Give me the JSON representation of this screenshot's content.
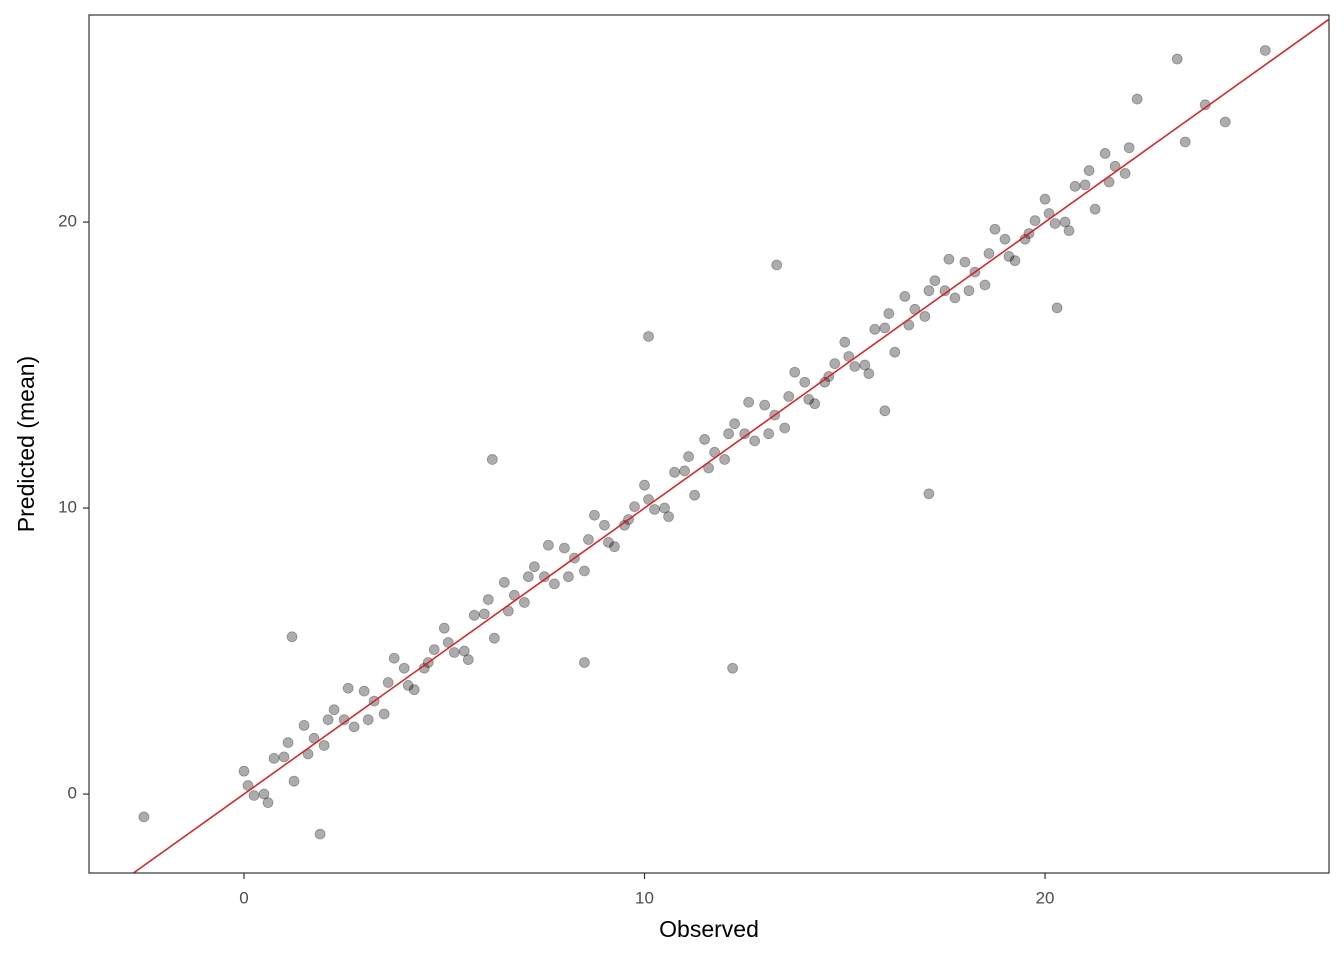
{
  "chart_data": {
    "type": "scatter",
    "x_label": "Observed",
    "y_label": "Predicted (mean)",
    "xlim": [
      -3.87,
      27.09
    ],
    "ylim": [
      -2.76,
      27.24
    ],
    "xticks": [
      0,
      10,
      20
    ],
    "yticks": [
      0,
      10,
      20
    ],
    "grid": false,
    "alpha": 0.13,
    "reference_line": {
      "slope": 1,
      "intercept": 0,
      "color": "#e41a1c"
    },
    "series": [
      {
        "color": "#000000",
        "x": [
          0,
          0.5,
          1,
          1.5,
          2,
          2.5,
          3,
          3.5,
          4,
          4.5,
          5,
          5.5,
          6,
          6.5,
          7,
          7.5,
          8,
          8.5,
          9,
          9.5,
          10,
          10.5,
          11,
          11.5,
          12,
          12.5,
          13,
          13.5,
          14,
          14.5,
          15,
          15.5,
          16,
          16.5,
          17,
          17.5,
          18,
          18.5,
          19,
          19.5,
          20,
          20.5,
          21,
          21.5,
          22,
          0.25,
          0.75,
          1.25,
          1.75,
          2.25,
          2.75,
          3.25,
          3.75,
          4.25,
          4.75,
          5.25,
          5.75,
          6.25,
          6.75,
          7.25,
          7.75,
          8.25,
          8.75,
          9.25,
          9.75,
          10.25,
          10.75,
          11.25,
          11.75,
          12.25,
          12.75,
          13.25,
          13.75,
          14.25,
          14.75,
          15.25,
          15.75,
          16.25,
          16.75,
          17.25,
          17.75,
          18.25,
          18.75,
          19.25,
          19.75,
          20.25,
          20.75,
          21.25,
          21.75,
          0.1,
          0.6,
          1.1,
          1.6,
          2.1,
          2.6,
          3.1,
          3.6,
          4.1,
          4.6,
          5.1,
          5.6,
          6.1,
          6.6,
          7.1,
          7.6,
          8.1,
          8.6,
          9.1,
          9.6,
          10.1,
          10.6,
          11.1,
          11.6,
          12.1,
          12.6,
          13.1,
          13.6,
          14.1,
          14.6,
          15.1,
          15.6,
          16.1,
          16.6,
          17.1,
          17.6,
          18.1,
          18.6,
          19.1,
          19.6,
          20.1,
          20.6,
          21.1,
          21.6,
          22.1,
          -2.5,
          1.9,
          1.2,
          6.2,
          12.2,
          17.1,
          13.3,
          10.1,
          20.3,
          25.5,
          23.3,
          24.5,
          22.3,
          23.5,
          24.0,
          16.0,
          8.5
        ],
        "values": [
          0.8,
          0.0,
          1.3,
          2.4,
          1.7,
          2.6,
          3.6,
          2.8,
          4.4,
          4.4,
          5.8,
          5.0,
          6.3,
          7.4,
          6.7,
          7.6,
          8.6,
          7.8,
          9.4,
          9.4,
          10.8,
          10.0,
          11.3,
          12.4,
          11.7,
          12.6,
          13.6,
          12.8,
          14.4,
          14.4,
          15.8,
          15.0,
          16.3,
          17.4,
          16.7,
          17.6,
          18.6,
          17.8,
          19.4,
          19.4,
          20.8,
          20.0,
          21.3,
          22.4,
          21.7,
          -0.05,
          1.25,
          0.45,
          1.95,
          2.95,
          2.35,
          3.25,
          4.75,
          3.65,
          5.05,
          4.95,
          6.25,
          5.45,
          6.95,
          7.95,
          7.35,
          8.25,
          9.75,
          8.65,
          10.05,
          9.95,
          11.25,
          10.45,
          11.95,
          12.95,
          12.35,
          13.25,
          14.75,
          13.65,
          15.05,
          14.95,
          16.25,
          15.45,
          16.95,
          17.95,
          17.35,
          18.25,
          19.75,
          18.65,
          20.05,
          19.95,
          21.25,
          20.45,
          21.95,
          0.3,
          -0.3,
          1.8,
          1.4,
          2.6,
          3.7,
          2.6,
          3.9,
          3.8,
          4.6,
          5.3,
          4.7,
          6.8,
          6.4,
          7.6,
          8.7,
          7.6,
          8.9,
          8.8,
          9.6,
          10.3,
          9.7,
          11.8,
          11.4,
          12.6,
          13.7,
          12.6,
          13.9,
          13.8,
          14.6,
          15.3,
          14.7,
          16.8,
          16.4,
          17.6,
          18.7,
          17.6,
          18.9,
          18.8,
          19.6,
          20.3,
          19.7,
          21.8,
          21.4,
          22.6,
          -0.8,
          -1.4,
          5.5,
          11.7,
          4.4,
          10.5,
          18.5,
          16.0,
          17.0,
          26.0,
          25.7,
          23.5,
          24.3,
          22.8,
          24.1,
          13.4,
          4.6
        ]
      }
    ]
  }
}
